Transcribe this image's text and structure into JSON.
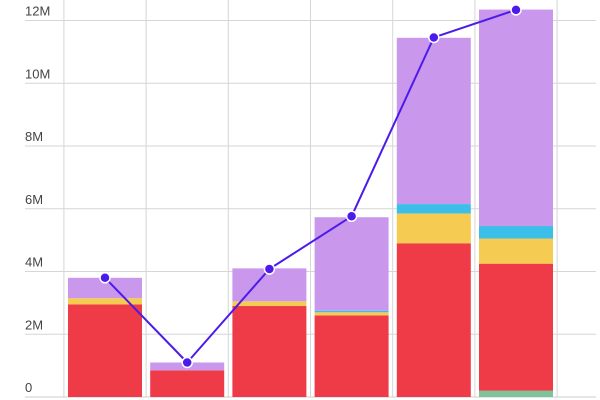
{
  "chart_data": {
    "type": "bar",
    "stacked": true,
    "categories": [
      "",
      "",
      "",
      "",
      "",
      ""
    ],
    "ylim": [
      0,
      12400000
    ],
    "yticks": [
      {
        "value": 0,
        "label": "0"
      },
      {
        "value": 2000000,
        "label": "2M"
      },
      {
        "value": 4000000,
        "label": "4M"
      },
      {
        "value": 6000000,
        "label": "6M"
      },
      {
        "value": 8000000,
        "label": "8M"
      },
      {
        "value": 10000000,
        "label": "10M"
      },
      {
        "value": 12000000,
        "label": "12M"
      }
    ],
    "grid": true,
    "legend": "none",
    "series": [
      {
        "color": "#7bc59a",
        "values": [
          0,
          0,
          0,
          0,
          0,
          200000
        ]
      },
      {
        "color": "#ef3a48",
        "values": [
          2950000,
          850000,
          2900000,
          2600000,
          4900000,
          4050000
        ]
      },
      {
        "color": "#f6cb52",
        "values": [
          200000,
          0,
          150000,
          100000,
          950000,
          800000
        ]
      },
      {
        "color": "#3bbfe8",
        "values": [
          0,
          0,
          0,
          50000,
          300000,
          400000
        ]
      },
      {
        "color": "#c997ec",
        "values": [
          650000,
          250000,
          1050000,
          2980000,
          5300000,
          6900000
        ]
      }
    ],
    "line": {
      "color": "#4c1bea",
      "values": [
        3800000,
        1100000,
        4080000,
        5760000,
        11460000,
        12340000
      ]
    }
  }
}
